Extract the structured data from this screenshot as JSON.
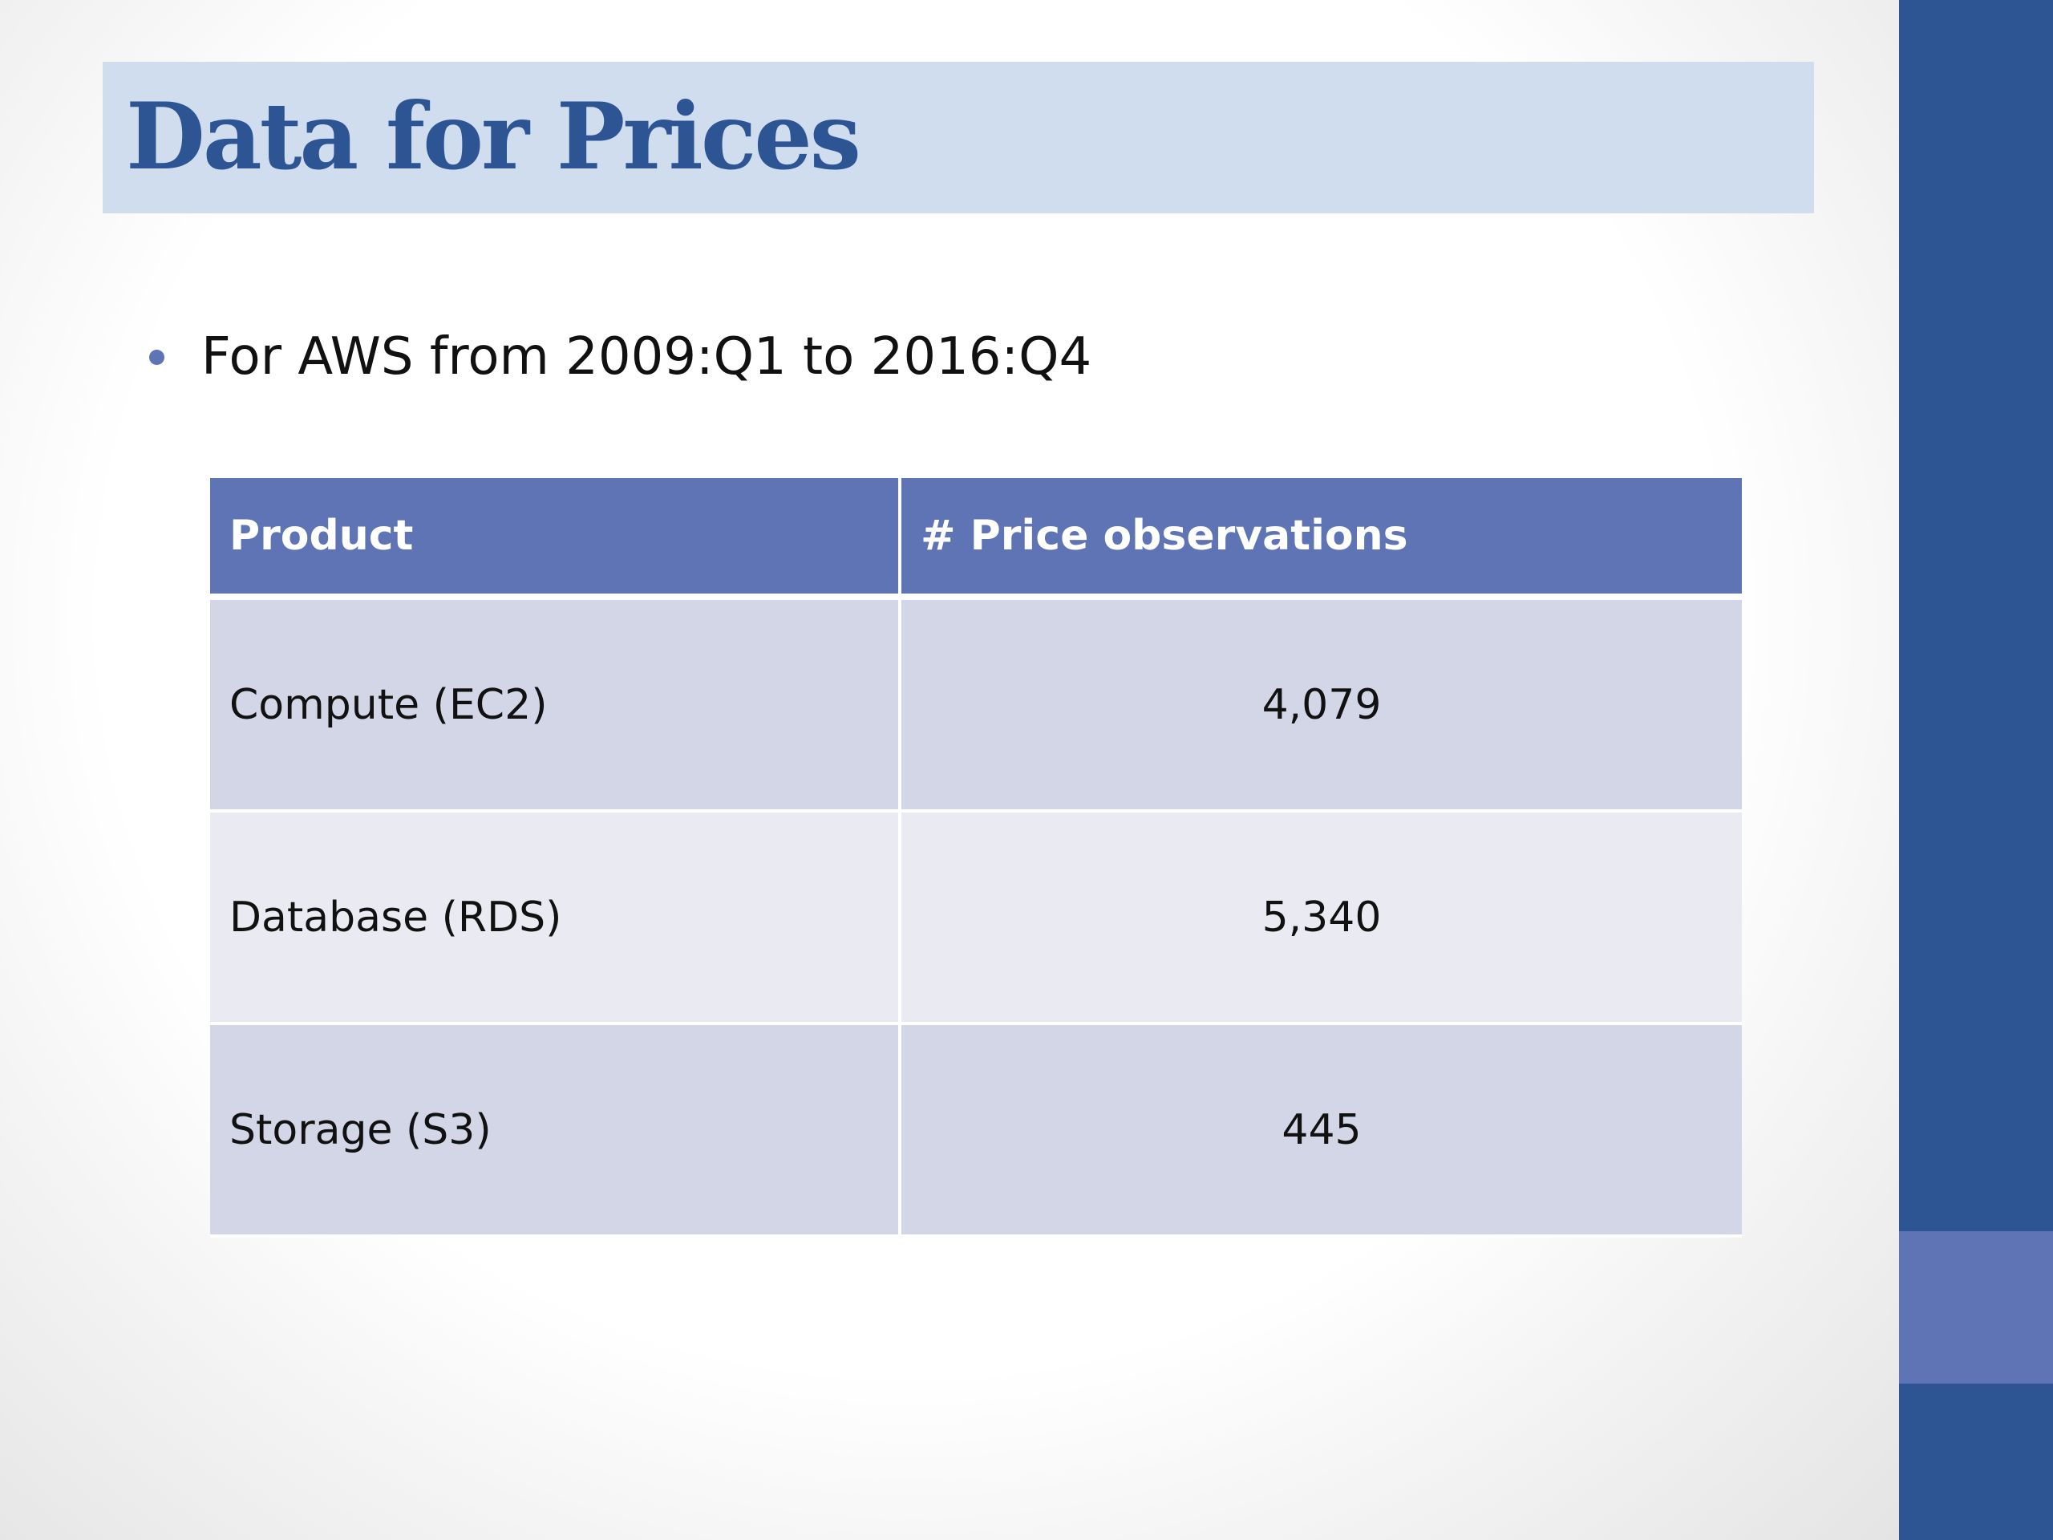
{
  "slide": {
    "title": "Data for Prices",
    "bullets": [
      "For AWS from 2009:Q1 to 2016:Q4"
    ]
  },
  "table": {
    "headers": [
      "Product",
      "# Price observations"
    ],
    "rows": [
      {
        "product": "Compute (EC2)",
        "observations": "4,079"
      },
      {
        "product": "Database (RDS)",
        "observations": "5,340"
      },
      {
        "product": "Storage (S3)",
        "observations": "445"
      }
    ]
  },
  "colors": {
    "title": "#2d5594",
    "title_band": "#d0ddef",
    "table_header": "#5f74b4",
    "row_band_dark": "#d3d6e6",
    "row_band_light": "#eaebf2",
    "sidebar": "#2d5594",
    "sidebar_accent": "#5f74b4",
    "bullet": "#5f74b4"
  }
}
